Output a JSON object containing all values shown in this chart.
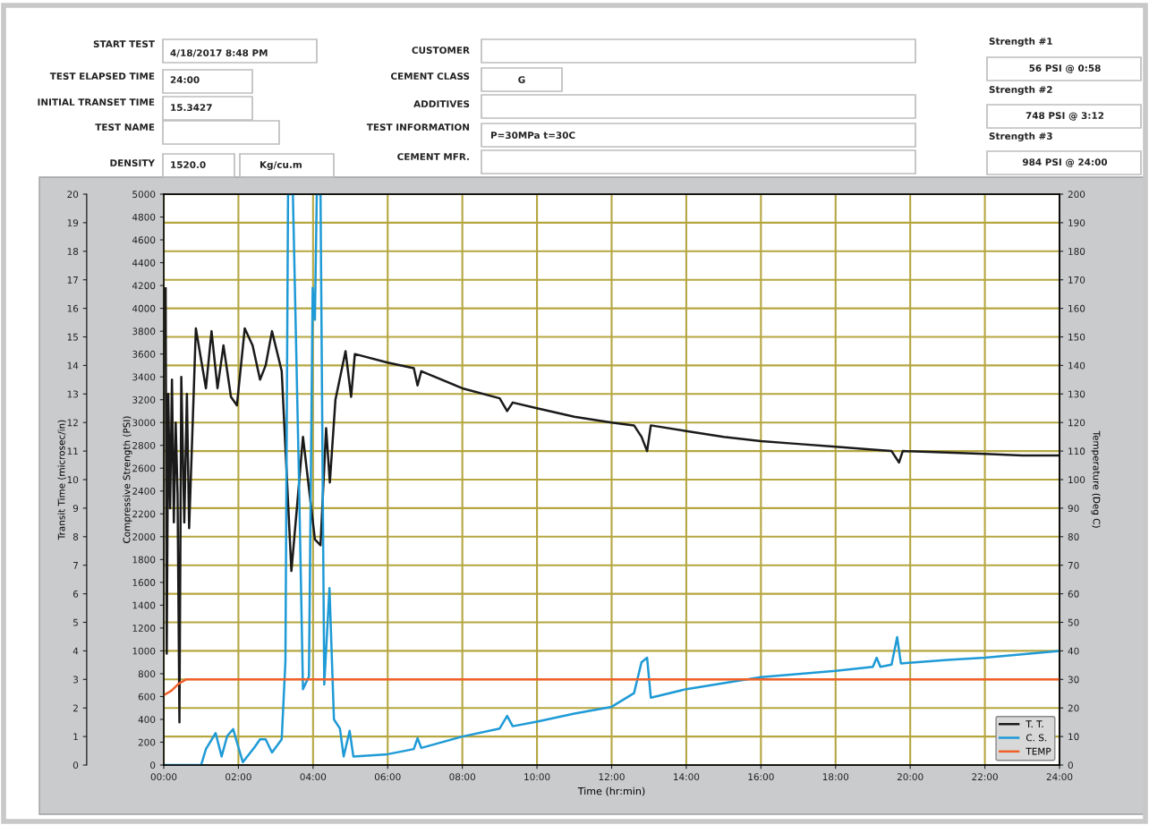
{
  "chart_data": [
    {
      "type": "other",
      "annotations": [
        "START TEST",
        "4/18/2017 8:48 PM",
        "TEST ELAPSED TIME",
        "24:00",
        "INITIAL TRANSET TIME",
        "15.3427",
        "TEST NAME",
        "DENSITY",
        "1520.0",
        "Kg/cu.m",
        "CUSTOMER",
        "CEMENT CLASS",
        "G",
        "ADDITIVES",
        "TEST INFORMATION",
        "P=30MPa t=30C",
        "CEMENT MFR.",
        "Strength #1",
        "56 PSI @ 0:58",
        "Strength #2",
        "748 PSI @ 3:12",
        "Strength #3",
        "984 PSI @ 24:00"
      ]
    },
    {
      "type": "line",
      "xlabel": "Time (hr:min)",
      "ylabel": "Transit Time (microsec/in)",
      "y2label": "Compressive Strength (PSI)",
      "y3label": "Temperature (Deg C)",
      "xlim": [
        0,
        24
      ],
      "xticks": [
        {
          "value": 0,
          "label": "00:00"
        },
        {
          "value": 2,
          "label": "02:00"
        },
        {
          "value": 4,
          "label": "04:00"
        },
        {
          "value": 6,
          "label": "06:00"
        },
        {
          "value": 8,
          "label": "08:00"
        },
        {
          "value": 10,
          "label": "10:00"
        },
        {
          "value": 12,
          "label": "12:00"
        },
        {
          "value": 14,
          "label": "14:00"
        },
        {
          "value": 16,
          "label": "16:00"
        },
        {
          "value": 18,
          "label": "18:00"
        },
        {
          "value": 20,
          "label": "20:00"
        },
        {
          "value": 22,
          "label": "22:00"
        },
        {
          "value": 24,
          "label": "24:00"
        }
      ],
      "ylim": [
        0,
        20
      ],
      "yticks": [
        0,
        1,
        2,
        3,
        4,
        5,
        6,
        7,
        8,
        9,
        10,
        11,
        12,
        13,
        14,
        15,
        16,
        17,
        18,
        19,
        20
      ],
      "y2lim": [
        0,
        5000
      ],
      "y2ticks": [
        0,
        200,
        400,
        600,
        800,
        1000,
        1200,
        1400,
        1600,
        1800,
        2000,
        2200,
        2400,
        2600,
        2800,
        3000,
        3200,
        3400,
        3600,
        3800,
        4000,
        4200,
        4400,
        4600,
        4800,
        5000
      ],
      "y3lim": [
        0,
        200
      ],
      "y3ticks": [
        0,
        10,
        20,
        30,
        40,
        50,
        60,
        70,
        80,
        90,
        100,
        110,
        120,
        130,
        140,
        150,
        160,
        170,
        180,
        190,
        200
      ],
      "grid": true,
      "legend": "bottom right",
      "marker": "none",
      "line_style": "solid",
      "series": [
        {
          "name": "T. T.",
          "color": "#1a1a1a",
          "axis": "y",
          "x": [
            0.05,
            0.08,
            0.12,
            0.17,
            0.22,
            0.27,
            0.32,
            0.37,
            0.42,
            0.47,
            0.55,
            0.62,
            0.68,
            0.75,
            0.86,
            1.13,
            1.28,
            1.44,
            1.6,
            1.8,
            1.96,
            2.17,
            2.38,
            2.58,
            2.73,
            2.9,
            3.16,
            3.42,
            3.58,
            3.73,
            4.05,
            4.2,
            4.35,
            4.45,
            4.6,
            4.87,
            5.02,
            5.12,
            6.0,
            6.7,
            6.8,
            6.9,
            8,
            9,
            9.2,
            9.35,
            10,
            11,
            12,
            12.6,
            12.8,
            12.95,
            13.05,
            14,
            15,
            16,
            17,
            18,
            19,
            19.5,
            19.7,
            19.8,
            21,
            22,
            23,
            24
          ],
          "values": [
            16.7,
            3.9,
            13.0,
            9.0,
            13.5,
            8.5,
            12.0,
            9.5,
            1.5,
            13.6,
            8.5,
            13.0,
            8.3,
            11.0,
            15.3,
            13.2,
            15.2,
            13.2,
            14.7,
            12.9,
            12.6,
            15.3,
            14.7,
            13.5,
            14.0,
            15.2,
            13.8,
            6.8,
            9.2,
            11.5,
            7.9,
            7.7,
            11.8,
            9.9,
            12.8,
            14.5,
            12.9,
            14.4,
            14.1,
            13.9,
            13.3,
            13.8,
            13.2,
            12.85,
            12.4,
            12.7,
            12.5,
            12.2,
            12.0,
            11.9,
            11.5,
            11.0,
            11.9,
            11.7,
            11.5,
            11.35,
            11.25,
            11.15,
            11.05,
            11.0,
            10.6,
            11.0,
            10.95,
            10.9,
            10.85,
            10.85
          ]
        },
        {
          "name": "C. S.",
          "color": "#1e9ad6",
          "axis": "y2",
          "x": [
            0,
            1.0,
            1.13,
            1.39,
            1.55,
            1.7,
            1.86,
            1.96,
            2.12,
            2.43,
            2.58,
            2.73,
            2.9,
            3.16,
            3.26,
            3.33,
            3.46,
            3.62,
            3.73,
            3.89,
            3.99,
            4.05,
            4.1,
            4.2,
            4.3,
            4.44,
            4.56,
            4.72,
            4.82,
            4.98,
            5.08,
            6.0,
            6.7,
            6.8,
            6.9,
            8,
            9.0,
            9.2,
            9.35,
            10,
            11,
            12,
            12.6,
            12.8,
            12.95,
            13.05,
            14,
            16,
            18,
            19.0,
            19.1,
            19.2,
            19.5,
            19.65,
            19.75,
            21,
            22,
            23,
            24
          ],
          "values": [
            0,
            0,
            140,
            280,
            75,
            255,
            315,
            200,
            25,
            155,
            225,
            225,
            110,
            225,
            910,
            5000,
            5000,
            2550,
            665,
            775,
            4180,
            3900,
            5000,
            5000,
            705,
            1550,
            400,
            320,
            75,
            300,
            75,
            95,
            140,
            235,
            150,
            250,
            320,
            430,
            340,
            380,
            450,
            510,
            630,
            900,
            940,
            590,
            665,
            770,
            825,
            860,
            940,
            860,
            880,
            1120,
            890,
            920,
            940,
            970,
            1000
          ]
        },
        {
          "name": "TEMP",
          "color": "#f0602a",
          "axis": "y3",
          "x": [
            0,
            0.2,
            0.4,
            0.6,
            24
          ],
          "values": [
            24.5,
            26,
            28.5,
            30,
            30
          ]
        }
      ]
    }
  ]
}
